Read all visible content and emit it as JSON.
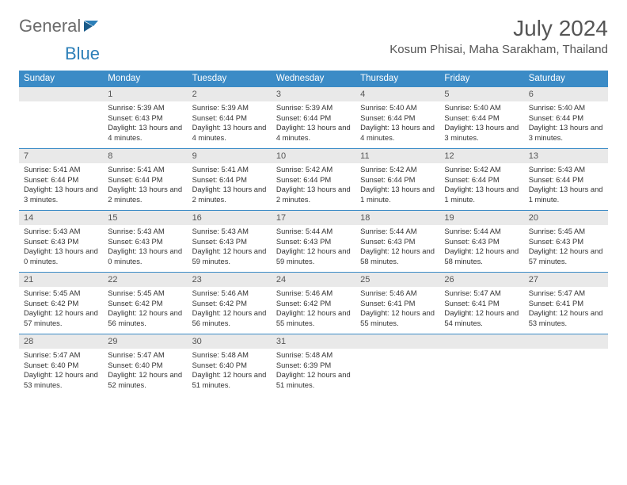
{
  "logo": {
    "text1": "General",
    "text2": "Blue"
  },
  "title": "July 2024",
  "location": "Kosum Phisai, Maha Sarakham, Thailand",
  "styling": {
    "header_bg": "#3b8bc6",
    "header_fg": "#ffffff",
    "daynum_bg": "#e9e9e9",
    "border_color": "#3b8bc6",
    "body_fontsize": 9.4,
    "title_fontsize": 28,
    "location_fontsize": 15,
    "weekday_fontsize": 11.5,
    "page_bg": "#ffffff"
  },
  "weekdays": [
    "Sunday",
    "Monday",
    "Tuesday",
    "Wednesday",
    "Thursday",
    "Friday",
    "Saturday"
  ],
  "weeks": [
    [
      {
        "n": "",
        "l": []
      },
      {
        "n": "1",
        "l": [
          "Sunrise: 5:39 AM",
          "Sunset: 6:43 PM",
          "Daylight: 13 hours and 4 minutes."
        ]
      },
      {
        "n": "2",
        "l": [
          "Sunrise: 5:39 AM",
          "Sunset: 6:44 PM",
          "Daylight: 13 hours and 4 minutes."
        ]
      },
      {
        "n": "3",
        "l": [
          "Sunrise: 5:39 AM",
          "Sunset: 6:44 PM",
          "Daylight: 13 hours and 4 minutes."
        ]
      },
      {
        "n": "4",
        "l": [
          "Sunrise: 5:40 AM",
          "Sunset: 6:44 PM",
          "Daylight: 13 hours and 4 minutes."
        ]
      },
      {
        "n": "5",
        "l": [
          "Sunrise: 5:40 AM",
          "Sunset: 6:44 PM",
          "Daylight: 13 hours and 3 minutes."
        ]
      },
      {
        "n": "6",
        "l": [
          "Sunrise: 5:40 AM",
          "Sunset: 6:44 PM",
          "Daylight: 13 hours and 3 minutes."
        ]
      }
    ],
    [
      {
        "n": "7",
        "l": [
          "Sunrise: 5:41 AM",
          "Sunset: 6:44 PM",
          "Daylight: 13 hours and 3 minutes."
        ]
      },
      {
        "n": "8",
        "l": [
          "Sunrise: 5:41 AM",
          "Sunset: 6:44 PM",
          "Daylight: 13 hours and 2 minutes."
        ]
      },
      {
        "n": "9",
        "l": [
          "Sunrise: 5:41 AM",
          "Sunset: 6:44 PM",
          "Daylight: 13 hours and 2 minutes."
        ]
      },
      {
        "n": "10",
        "l": [
          "Sunrise: 5:42 AM",
          "Sunset: 6:44 PM",
          "Daylight: 13 hours and 2 minutes."
        ]
      },
      {
        "n": "11",
        "l": [
          "Sunrise: 5:42 AM",
          "Sunset: 6:44 PM",
          "Daylight: 13 hours and 1 minute."
        ]
      },
      {
        "n": "12",
        "l": [
          "Sunrise: 5:42 AM",
          "Sunset: 6:44 PM",
          "Daylight: 13 hours and 1 minute."
        ]
      },
      {
        "n": "13",
        "l": [
          "Sunrise: 5:43 AM",
          "Sunset: 6:44 PM",
          "Daylight: 13 hours and 1 minute."
        ]
      }
    ],
    [
      {
        "n": "14",
        "l": [
          "Sunrise: 5:43 AM",
          "Sunset: 6:43 PM",
          "Daylight: 13 hours and 0 minutes."
        ]
      },
      {
        "n": "15",
        "l": [
          "Sunrise: 5:43 AM",
          "Sunset: 6:43 PM",
          "Daylight: 13 hours and 0 minutes."
        ]
      },
      {
        "n": "16",
        "l": [
          "Sunrise: 5:43 AM",
          "Sunset: 6:43 PM",
          "Daylight: 12 hours and 59 minutes."
        ]
      },
      {
        "n": "17",
        "l": [
          "Sunrise: 5:44 AM",
          "Sunset: 6:43 PM",
          "Daylight: 12 hours and 59 minutes."
        ]
      },
      {
        "n": "18",
        "l": [
          "Sunrise: 5:44 AM",
          "Sunset: 6:43 PM",
          "Daylight: 12 hours and 58 minutes."
        ]
      },
      {
        "n": "19",
        "l": [
          "Sunrise: 5:44 AM",
          "Sunset: 6:43 PM",
          "Daylight: 12 hours and 58 minutes."
        ]
      },
      {
        "n": "20",
        "l": [
          "Sunrise: 5:45 AM",
          "Sunset: 6:43 PM",
          "Daylight: 12 hours and 57 minutes."
        ]
      }
    ],
    [
      {
        "n": "21",
        "l": [
          "Sunrise: 5:45 AM",
          "Sunset: 6:42 PM",
          "Daylight: 12 hours and 57 minutes."
        ]
      },
      {
        "n": "22",
        "l": [
          "Sunrise: 5:45 AM",
          "Sunset: 6:42 PM",
          "Daylight: 12 hours and 56 minutes."
        ]
      },
      {
        "n": "23",
        "l": [
          "Sunrise: 5:46 AM",
          "Sunset: 6:42 PM",
          "Daylight: 12 hours and 56 minutes."
        ]
      },
      {
        "n": "24",
        "l": [
          "Sunrise: 5:46 AM",
          "Sunset: 6:42 PM",
          "Daylight: 12 hours and 55 minutes."
        ]
      },
      {
        "n": "25",
        "l": [
          "Sunrise: 5:46 AM",
          "Sunset: 6:41 PM",
          "Daylight: 12 hours and 55 minutes."
        ]
      },
      {
        "n": "26",
        "l": [
          "Sunrise: 5:47 AM",
          "Sunset: 6:41 PM",
          "Daylight: 12 hours and 54 minutes."
        ]
      },
      {
        "n": "27",
        "l": [
          "Sunrise: 5:47 AM",
          "Sunset: 6:41 PM",
          "Daylight: 12 hours and 53 minutes."
        ]
      }
    ],
    [
      {
        "n": "28",
        "l": [
          "Sunrise: 5:47 AM",
          "Sunset: 6:40 PM",
          "Daylight: 12 hours and 53 minutes."
        ]
      },
      {
        "n": "29",
        "l": [
          "Sunrise: 5:47 AM",
          "Sunset: 6:40 PM",
          "Daylight: 12 hours and 52 minutes."
        ]
      },
      {
        "n": "30",
        "l": [
          "Sunrise: 5:48 AM",
          "Sunset: 6:40 PM",
          "Daylight: 12 hours and 51 minutes."
        ]
      },
      {
        "n": "31",
        "l": [
          "Sunrise: 5:48 AM",
          "Sunset: 6:39 PM",
          "Daylight: 12 hours and 51 minutes."
        ]
      },
      {
        "n": "",
        "l": []
      },
      {
        "n": "",
        "l": []
      },
      {
        "n": "",
        "l": []
      }
    ]
  ]
}
